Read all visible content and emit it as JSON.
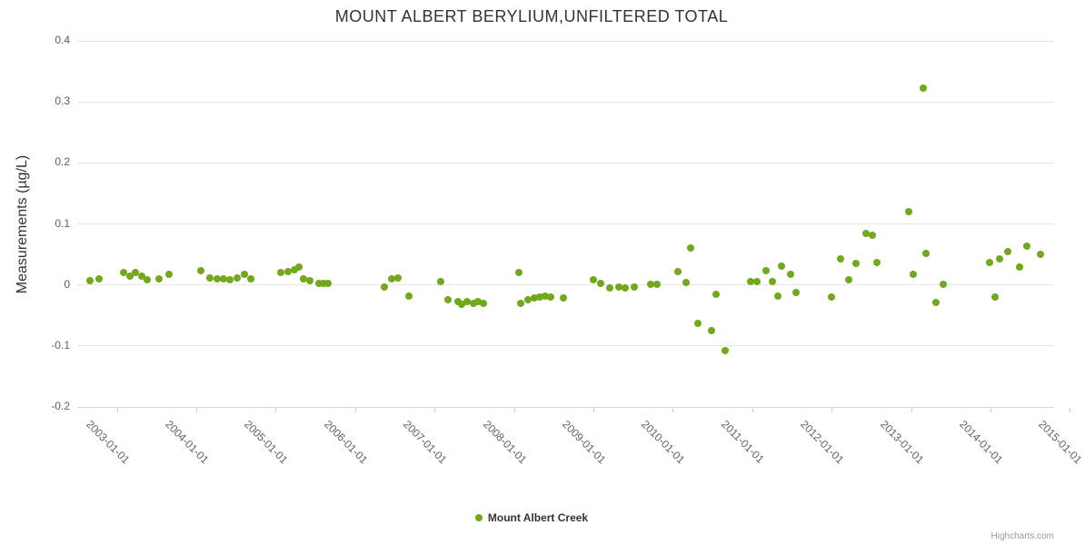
{
  "credits": "Highcharts.com",
  "chart_data": {
    "type": "scatter",
    "title": "MOUNT ALBERT BERYLIUM,UNFILTERED TOTAL",
    "xlabel": "",
    "ylabel": "Measurements (µg/L)",
    "ylim": [
      -0.2,
      0.4
    ],
    "xlim": [
      2002.5,
      2014.8
    ],
    "grid": "horizontal-only",
    "legend_position": "bottom-center",
    "y_ticks": [
      {
        "label": "0.4",
        "value": 0.4
      },
      {
        "label": "0.3",
        "value": 0.3
      },
      {
        "label": "0.2",
        "value": 0.2
      },
      {
        "label": "0.1",
        "value": 0.1
      },
      {
        "label": "0",
        "value": 0
      },
      {
        "label": "-0.1",
        "value": -0.1
      },
      {
        "label": "-0.2",
        "value": -0.2
      }
    ],
    "x_ticks": [
      {
        "label": "2003-01-01",
        "value": 2003
      },
      {
        "label": "2004-01-01",
        "value": 2004
      },
      {
        "label": "2005-01-01",
        "value": 2005
      },
      {
        "label": "2006-01-01",
        "value": 2006
      },
      {
        "label": "2007-01-01",
        "value": 2007
      },
      {
        "label": "2008-01-01",
        "value": 2008
      },
      {
        "label": "2009-01-01",
        "value": 2009
      },
      {
        "label": "2010-01-01",
        "value": 2010
      },
      {
        "label": "2011-01-01",
        "value": 2011
      },
      {
        "label": "2012-01-01",
        "value": 2012
      },
      {
        "label": "2013-01-01",
        "value": 2013
      },
      {
        "label": "2014-01-01",
        "value": 2014
      },
      {
        "label": "2015-01-01",
        "value": 2015
      }
    ],
    "series": [
      {
        "name": "Mount Albert Creek",
        "color": "#72a81c",
        "marker": "circle",
        "points": [
          [
            2002.66,
            0.007
          ],
          [
            2002.77,
            0.01
          ],
          [
            2003.08,
            0.02
          ],
          [
            2003.16,
            0.015
          ],
          [
            2003.23,
            0.02
          ],
          [
            2003.31,
            0.014
          ],
          [
            2003.38,
            0.008
          ],
          [
            2003.53,
            0.01
          ],
          [
            2003.66,
            0.018
          ],
          [
            2004.06,
            0.023
          ],
          [
            2004.17,
            0.012
          ],
          [
            2004.26,
            0.01
          ],
          [
            2004.34,
            0.01
          ],
          [
            2004.42,
            0.008
          ],
          [
            2004.51,
            0.012
          ],
          [
            2004.6,
            0.017
          ],
          [
            2004.69,
            0.01
          ],
          [
            2005.06,
            0.02
          ],
          [
            2005.15,
            0.022
          ],
          [
            2005.23,
            0.025
          ],
          [
            2005.29,
            0.03
          ],
          [
            2005.35,
            0.01
          ],
          [
            2005.43,
            0.007
          ],
          [
            2005.54,
            0.003
          ],
          [
            2005.6,
            0.002
          ],
          [
            2005.66,
            0.003
          ],
          [
            2006.37,
            -0.003
          ],
          [
            2006.46,
            0.01
          ],
          [
            2006.54,
            0.012
          ],
          [
            2006.68,
            -0.018
          ],
          [
            2007.08,
            0.005
          ],
          [
            2007.17,
            -0.025
          ],
          [
            2007.29,
            -0.028
          ],
          [
            2007.34,
            -0.032
          ],
          [
            2007.41,
            -0.028
          ],
          [
            2007.49,
            -0.03
          ],
          [
            2007.55,
            -0.027
          ],
          [
            2007.62,
            -0.03
          ],
          [
            2008.06,
            0.021
          ],
          [
            2008.08,
            -0.03
          ],
          [
            2008.18,
            -0.025
          ],
          [
            2008.26,
            -0.022
          ],
          [
            2008.32,
            -0.02
          ],
          [
            2008.39,
            -0.018
          ],
          [
            2008.46,
            -0.02
          ],
          [
            2008.62,
            -0.022
          ],
          [
            2009.0,
            0.008
          ],
          [
            2009.09,
            0.002
          ],
          [
            2009.2,
            -0.005
          ],
          [
            2009.32,
            -0.003
          ],
          [
            2009.4,
            -0.005
          ],
          [
            2009.51,
            -0.003
          ],
          [
            2009.72,
            0.001
          ],
          [
            2009.8,
            0.001
          ],
          [
            2010.06,
            0.022
          ],
          [
            2010.17,
            0.004
          ],
          [
            2010.22,
            0.061
          ],
          [
            2010.31,
            -0.063
          ],
          [
            2010.49,
            -0.075
          ],
          [
            2010.54,
            -0.015
          ],
          [
            2010.66,
            -0.107
          ],
          [
            2010.98,
            0.005
          ],
          [
            2011.06,
            0.006
          ],
          [
            2011.17,
            0.024
          ],
          [
            2011.25,
            0.005
          ],
          [
            2011.32,
            -0.018
          ],
          [
            2011.37,
            0.031
          ],
          [
            2011.48,
            0.018
          ],
          [
            2011.55,
            -0.012
          ],
          [
            2012.0,
            -0.02
          ],
          [
            2012.11,
            0.042
          ],
          [
            2012.21,
            0.008
          ],
          [
            2012.31,
            0.035
          ],
          [
            2012.43,
            0.085
          ],
          [
            2012.51,
            0.082
          ],
          [
            2012.57,
            0.037
          ],
          [
            2012.97,
            0.12
          ],
          [
            2013.03,
            0.017
          ],
          [
            2013.15,
            0.322
          ],
          [
            2013.19,
            0.051
          ],
          [
            2013.31,
            -0.029
          ],
          [
            2013.4,
            0.001
          ],
          [
            2013.99,
            0.037
          ],
          [
            2014.06,
            -0.02
          ],
          [
            2014.11,
            0.043
          ],
          [
            2014.22,
            0.055
          ],
          [
            2014.37,
            0.03
          ],
          [
            2014.46,
            0.063
          ],
          [
            2014.63,
            0.05
          ]
        ]
      }
    ]
  }
}
